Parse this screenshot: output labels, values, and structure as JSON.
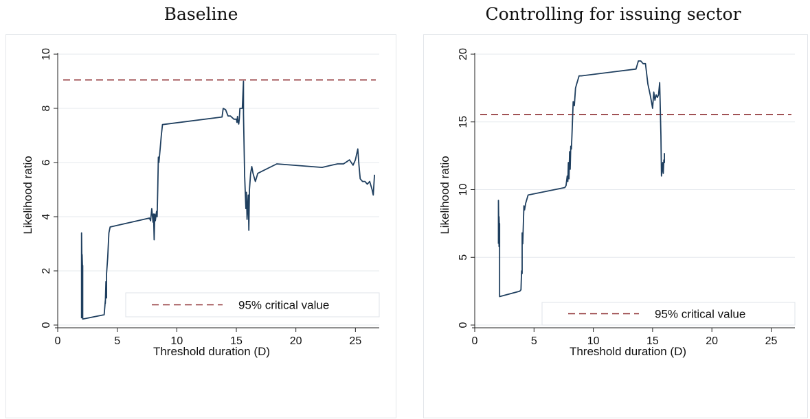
{
  "chart_data": [
    {
      "type": "line",
      "title": "Baseline",
      "xlabel": "Threshold duration (D)",
      "ylabel": "Likelihood ratio",
      "xlim": [
        0,
        27
      ],
      "ylim": [
        0,
        10
      ],
      "xticks": [
        0,
        5,
        10,
        15,
        20,
        25
      ],
      "yticks": [
        0,
        2,
        4,
        6,
        8,
        10
      ],
      "grid": true,
      "legend": {
        "placement": "bottom-right",
        "entries": [
          "95% critical value"
        ]
      },
      "critical_value": 9.05,
      "series": [
        {
          "color": "#1f3f5f",
          "x": [
            2.0,
            2.0,
            2.05,
            2.05,
            2.1,
            2.1,
            2.1,
            3.9,
            4.0,
            4.0,
            4.05,
            4.1,
            4.1,
            4.2,
            4.3,
            4.4,
            7.7,
            7.8,
            7.9,
            8.0,
            8.05,
            8.1,
            8.15,
            8.2,
            8.3,
            8.35,
            8.4,
            8.45,
            8.5,
            8.6,
            8.7,
            8.8,
            13.8,
            13.9,
            14.1,
            14.3,
            14.5,
            14.8,
            15.0,
            15.05,
            15.1,
            15.15,
            15.2,
            15.25,
            15.3,
            15.4,
            15.5,
            15.6,
            15.6,
            15.7,
            15.8,
            15.85,
            15.9,
            16.0,
            16.05,
            16.1,
            16.2,
            16.3,
            16.4,
            16.5,
            16.6,
            16.8,
            18.4,
            22.2,
            23.0,
            23.5,
            24.0,
            24.5,
            24.8,
            25.0,
            25.2,
            25.3,
            25.4,
            25.5,
            25.6,
            25.8,
            26.0,
            26.2,
            26.4,
            26.5,
            26.6
          ],
          "y": [
            0.25,
            3.4,
            1.6,
            2.6,
            1.9,
            2.2,
            0.22,
            0.38,
            0.9,
            0.8,
            1.6,
            1.0,
            1.9,
            2.5,
            3.4,
            3.62,
            3.95,
            3.85,
            4.3,
            3.8,
            4.1,
            3.15,
            4.1,
            3.85,
            4.2,
            4.0,
            5.0,
            6.2,
            6.0,
            6.5,
            7.0,
            7.4,
            7.68,
            8.0,
            7.95,
            7.72,
            7.72,
            7.6,
            7.6,
            7.48,
            7.7,
            7.5,
            7.42,
            7.6,
            8.0,
            8.0,
            8.0,
            9.0,
            7.8,
            5.5,
            4.3,
            4.9,
            3.9,
            4.8,
            3.5,
            5.0,
            5.6,
            5.85,
            5.6,
            5.45,
            5.3,
            5.6,
            5.95,
            5.82,
            5.9,
            5.95,
            5.95,
            6.1,
            5.9,
            6.1,
            6.5,
            5.9,
            5.4,
            5.35,
            5.3,
            5.3,
            5.2,
            5.3,
            5.0,
            4.8,
            5.55
          ]
        }
      ]
    },
    {
      "type": "line",
      "title": "Controlling for issuing sector",
      "xlabel": "Threshold duration (D)",
      "ylabel": "Likelihood ratio",
      "xlim": [
        0,
        27
      ],
      "ylim": [
        0,
        20
      ],
      "xticks": [
        0,
        5,
        10,
        15,
        20,
        25
      ],
      "yticks": [
        0,
        5,
        10,
        15,
        20
      ],
      "grid": true,
      "legend": {
        "placement": "bottom-right",
        "entries": [
          "95% critical value"
        ]
      },
      "critical_value": 15.55,
      "series": [
        {
          "color": "#1f3f5f",
          "x": [
            2.0,
            2.0,
            2.05,
            2.05,
            2.1,
            2.1,
            2.1,
            3.8,
            3.9,
            3.95,
            4.0,
            4.0,
            4.05,
            4.1,
            4.15,
            4.2,
            4.3,
            4.5,
            7.6,
            7.7,
            7.8,
            7.85,
            7.9,
            7.95,
            8.0,
            8.05,
            8.1,
            8.15,
            8.2,
            8.3,
            8.4,
            8.5,
            8.6,
            8.8,
            9.0,
            13.6,
            13.8,
            14.0,
            14.2,
            14.4,
            14.6,
            14.8,
            14.9,
            15.0,
            15.1,
            15.2,
            15.3,
            15.4,
            15.5,
            15.6,
            15.7,
            15.75,
            15.8,
            15.85,
            15.9,
            15.95,
            16.0,
            16.0
          ],
          "y": [
            6.0,
            9.2,
            5.8,
            8.0,
            6.5,
            7.5,
            2.1,
            2.5,
            2.6,
            4.0,
            3.8,
            6.8,
            6.0,
            7.5,
            8.8,
            8.5,
            9.0,
            9.6,
            10.15,
            10.3,
            11.0,
            10.6,
            12.0,
            10.8,
            12.8,
            11.5,
            13.2,
            13.0,
            14.0,
            16.5,
            16.2,
            17.5,
            17.8,
            18.4,
            18.4,
            18.9,
            19.5,
            19.5,
            19.3,
            19.3,
            17.8,
            17.0,
            16.5,
            16.0,
            17.2,
            16.6,
            17.0,
            16.8,
            17.0,
            17.9,
            14.0,
            11.0,
            11.5,
            12.0,
            11.2,
            12.2,
            12.0,
            12.7
          ]
        }
      ]
    }
  ]
}
